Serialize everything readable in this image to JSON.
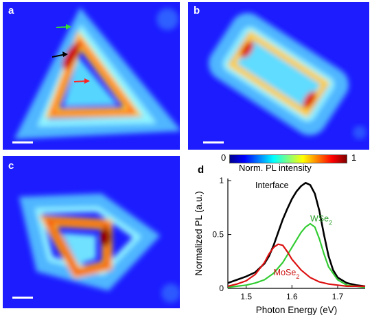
{
  "panels": [
    {
      "label": "a"
    },
    {
      "label": "b"
    },
    {
      "label": "c"
    },
    {
      "label": "d"
    }
  ],
  "colorbar": {
    "min_label": "0",
    "max_label": "1",
    "title": "Norm. PL intensity"
  },
  "colors": {
    "background": "#1c1cff",
    "interface": "#000000",
    "wse2": "#33cc33",
    "mose2": "#dd1111"
  },
  "chart_data": {
    "type": "line",
    "xlabel": "Photon Energy (eV)",
    "ylabel": "Normalized PL (a.u.)",
    "xlim": [
      1.46,
      1.76
    ],
    "ylim": [
      0,
      1.02
    ],
    "xticks": [
      "1.5",
      "1.6",
      "1.7"
    ],
    "yticks": [
      "0",
      "0.5",
      "1"
    ],
    "annotations": [
      {
        "text": "Interface",
        "x": 1.52,
        "y": 0.93
      },
      {
        "text": "WSe",
        "sub": "2",
        "x": 1.64,
        "y": 0.62
      },
      {
        "text": "MoSe",
        "sub": "2",
        "x": 1.56,
        "y": 0.12
      }
    ],
    "series": [
      {
        "name": "Interface",
        "color": "#000000",
        "x": [
          1.46,
          1.48,
          1.5,
          1.52,
          1.54,
          1.55,
          1.56,
          1.57,
          1.58,
          1.59,
          1.6,
          1.61,
          1.62,
          1.63,
          1.64,
          1.65,
          1.66,
          1.67,
          1.68,
          1.69,
          1.7,
          1.72,
          1.74,
          1.76
        ],
        "y": [
          0.05,
          0.08,
          0.11,
          0.15,
          0.23,
          0.3,
          0.4,
          0.52,
          0.64,
          0.74,
          0.83,
          0.9,
          0.95,
          0.98,
          0.96,
          0.88,
          0.72,
          0.5,
          0.3,
          0.17,
          0.1,
          0.05,
          0.03,
          0.02
        ]
      },
      {
        "name": "WSe2",
        "color": "#33cc33",
        "x": [
          1.46,
          1.48,
          1.5,
          1.52,
          1.54,
          1.56,
          1.58,
          1.6,
          1.62,
          1.63,
          1.64,
          1.65,
          1.66,
          1.67,
          1.68,
          1.7,
          1.72,
          1.74,
          1.76
        ],
        "y": [
          0.01,
          0.02,
          0.03,
          0.05,
          0.08,
          0.14,
          0.24,
          0.38,
          0.52,
          0.57,
          0.6,
          0.57,
          0.46,
          0.32,
          0.2,
          0.08,
          0.03,
          0.02,
          0.01
        ]
      },
      {
        "name": "MoSe2",
        "color": "#dd1111",
        "x": [
          1.46,
          1.48,
          1.5,
          1.52,
          1.54,
          1.55,
          1.56,
          1.57,
          1.58,
          1.59,
          1.6,
          1.62,
          1.64,
          1.66,
          1.68,
          1.7,
          1.72,
          1.74,
          1.76
        ],
        "y": [
          0.02,
          0.04,
          0.07,
          0.13,
          0.24,
          0.32,
          0.38,
          0.41,
          0.4,
          0.34,
          0.27,
          0.17,
          0.1,
          0.06,
          0.04,
          0.03,
          0.02,
          0.02,
          0.02
        ]
      }
    ]
  }
}
